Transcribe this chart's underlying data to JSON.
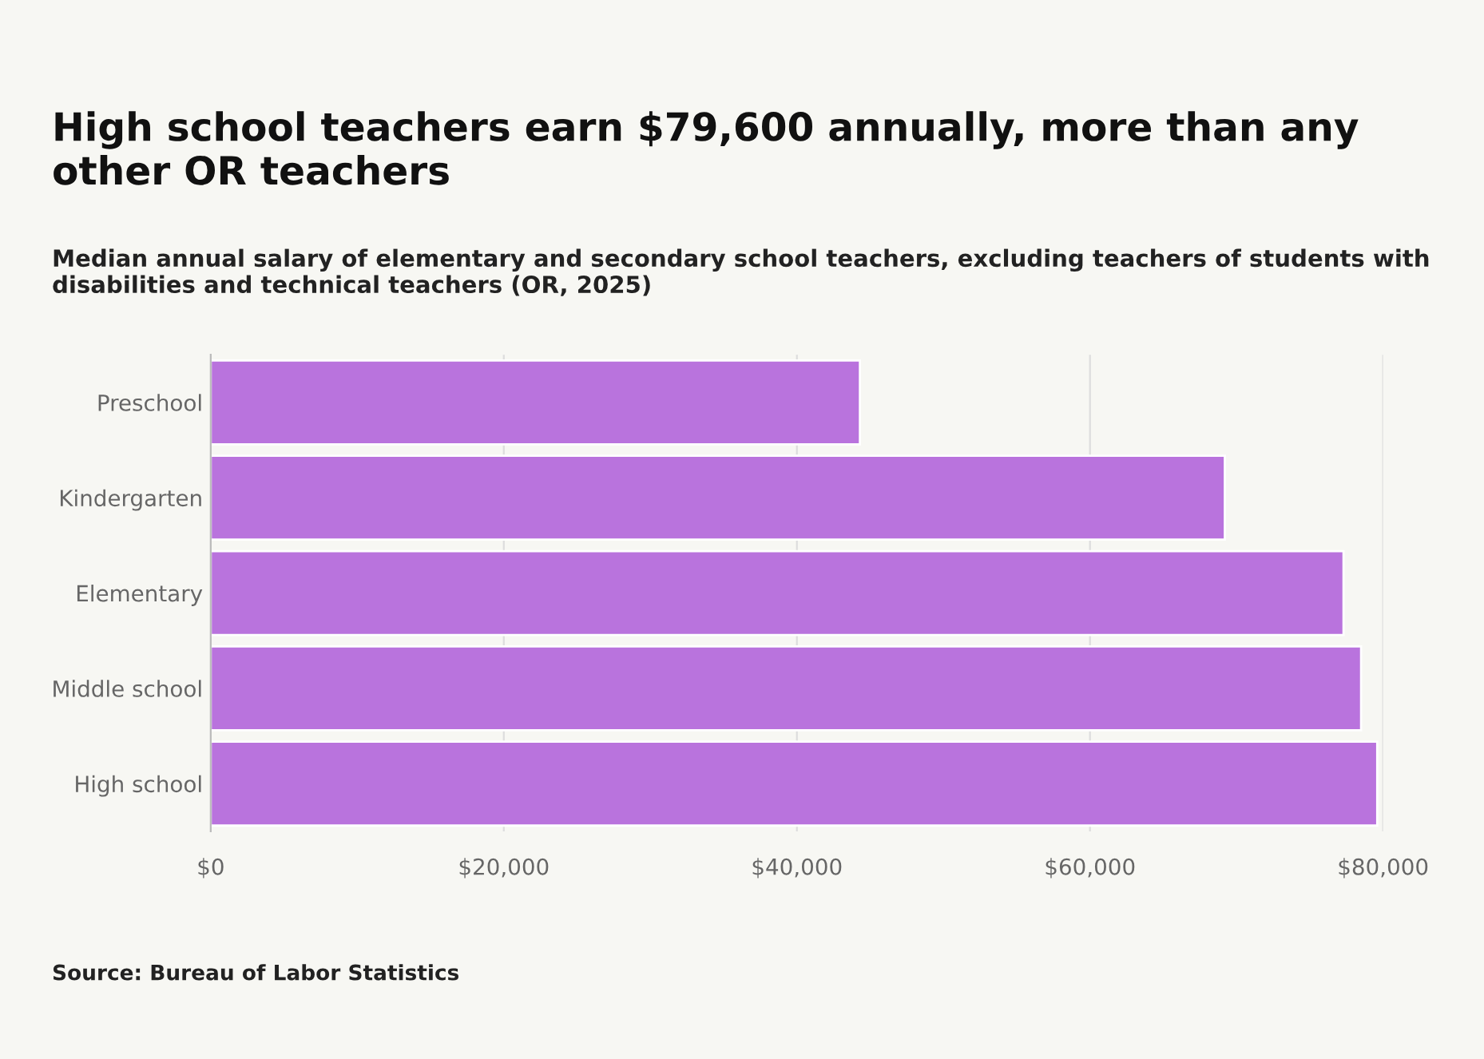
{
  "chart_data": {
    "type": "bar",
    "orientation": "horizontal",
    "title": "High school teachers earn $79,600 annually, more than any other OR teachers",
    "subtitle": "Median annual salary of elementary and secondary school teachers, excluding teachers of students with disabilities and technical teachers (OR, 2025)",
    "categories": [
      "Preschool",
      "Kindergarten",
      "Elementary",
      "Middle school",
      "High school"
    ],
    "values": [
      44300,
      69200,
      77300,
      78500,
      79600
    ],
    "color": "#b973dd",
    "xlim": [
      0,
      80000
    ],
    "xticks": [
      {
        "value": 0,
        "label": "$0"
      },
      {
        "value": 20000,
        "label": "$20,000"
      },
      {
        "value": 40000,
        "label": "$40,000"
      },
      {
        "value": 60000,
        "label": "$60,000"
      },
      {
        "value": 80000,
        "label": "$80,000"
      }
    ],
    "grid": "x",
    "annotations": [
      "Source: Bureau of Labor Statistics"
    ]
  }
}
